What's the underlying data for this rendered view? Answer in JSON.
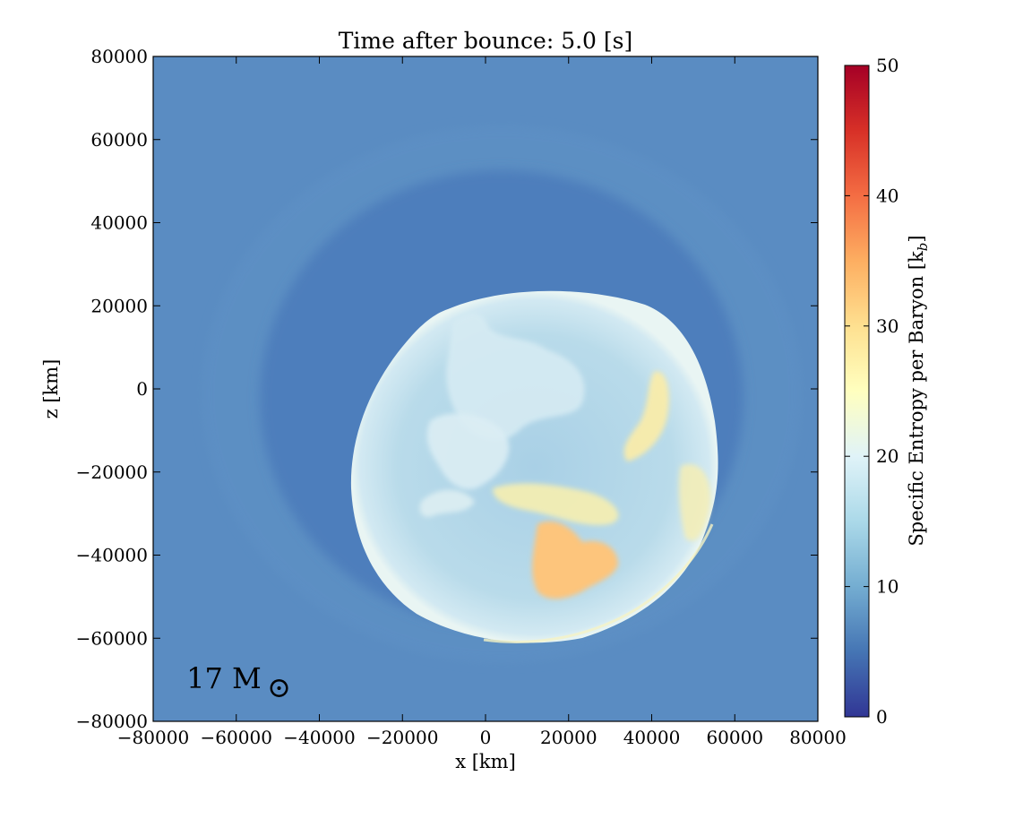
{
  "chart_data": {
    "type": "heatmap",
    "title": "Time after bounce: 5.0 [s]",
    "xlabel": "x [km]",
    "ylabel": "z [km]",
    "xlim": [
      -80000,
      80000
    ],
    "ylim": [
      -80000,
      80000
    ],
    "x_ticks": [
      -80000,
      -60000,
      -40000,
      -20000,
      0,
      20000,
      40000,
      60000,
      80000
    ],
    "y_ticks": [
      -80000,
      -60000,
      -40000,
      -20000,
      0,
      20000,
      40000,
      60000,
      80000
    ],
    "x_tick_labels": [
      "−80000",
      "−60000",
      "−40000",
      "−20000",
      "0",
      "20000",
      "40000",
      "60000",
      "80000"
    ],
    "y_tick_labels": [
      "−80000",
      "−60000",
      "−40000",
      "−20000",
      "0",
      "20000",
      "40000",
      "60000",
      "80000"
    ],
    "annotation": {
      "text": "17 M",
      "symbol": "⊙",
      "x": -72000,
      "y": -72000
    },
    "colorbar": {
      "label": "Specific Entropy per Baryon [k",
      "label_sub": "b",
      "label_end": "]",
      "range": [
        0,
        50
      ],
      "ticks": [
        0,
        10,
        20,
        30,
        40,
        50
      ],
      "tick_labels": [
        "0",
        "10",
        "20",
        "30",
        "40",
        "50"
      ],
      "colormap": "RdYlBu_r",
      "stops": [
        "#313695",
        "#4575b4",
        "#74add1",
        "#abd9e9",
        "#e0f3f8",
        "#ffffbf",
        "#fee090",
        "#fdae61",
        "#f46d43",
        "#d73027",
        "#a50026"
      ]
    },
    "background_entropy": 8.5,
    "colors": {
      "ambient": "#5a8cc2",
      "inner_ring": "#4d7ebc",
      "shell_edge": "#bcdcec",
      "hot_plume": "#fdc57c",
      "warm_plume": "#fbe9a0",
      "cool_plume": "#cfe7f1"
    }
  }
}
